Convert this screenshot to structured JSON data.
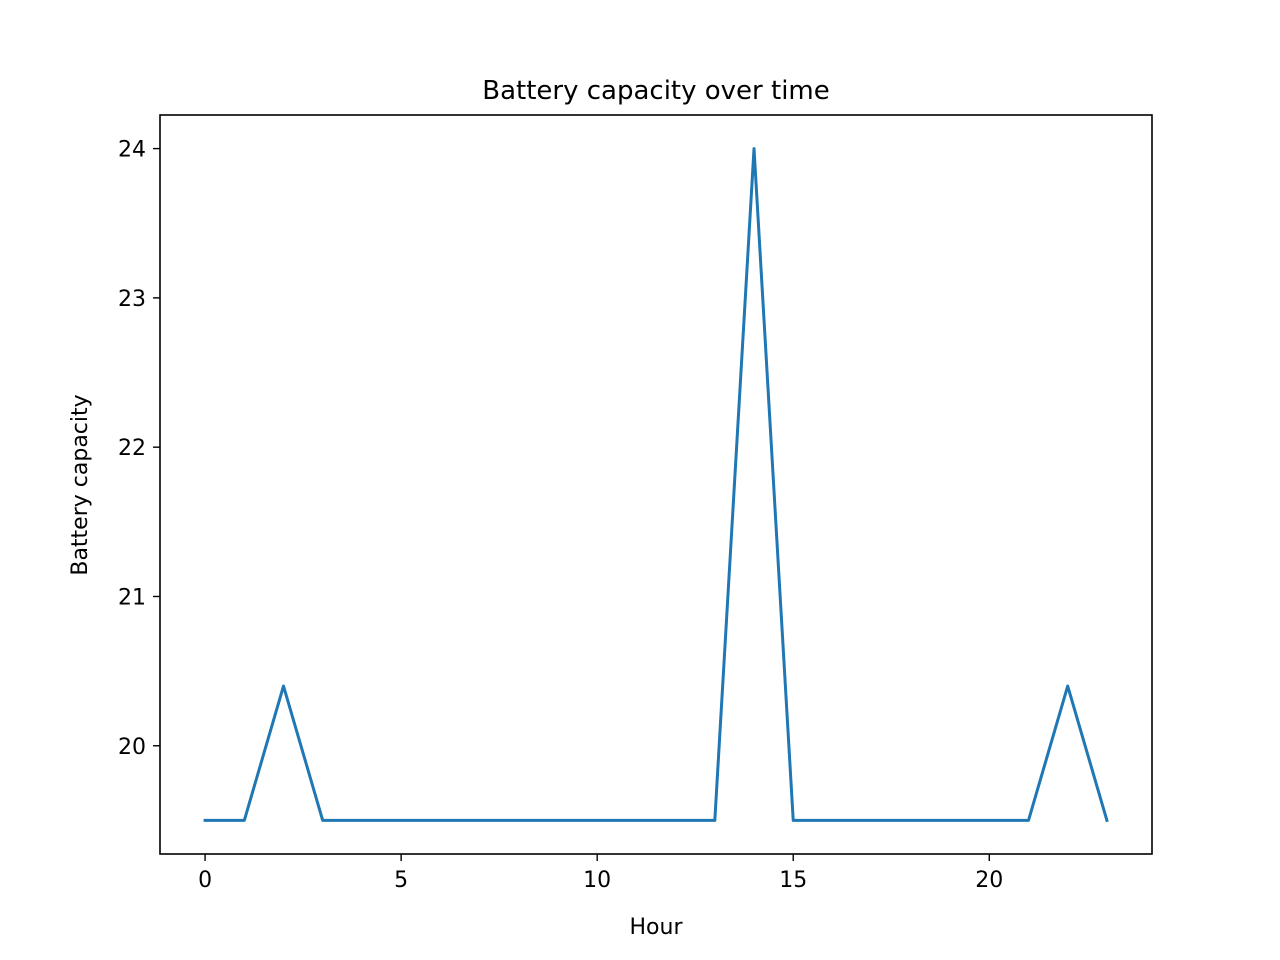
{
  "chart_data": {
    "type": "line",
    "title": "Battery capacity over time",
    "xlabel": "Hour",
    "ylabel": "Battery capacity",
    "xlim": [
      -1.15,
      24.15
    ],
    "ylim": [
      19.275,
      24.225
    ],
    "xticks": [
      0,
      5,
      10,
      15,
      20
    ],
    "yticks": [
      20,
      21,
      22,
      23,
      24
    ],
    "grid": false,
    "series": [
      {
        "color": "#1f77b4",
        "x": [
          0,
          1,
          2,
          3,
          4,
          5,
          6,
          7,
          8,
          9,
          10,
          11,
          12,
          13,
          14,
          15,
          16,
          17,
          18,
          19,
          20,
          21,
          22,
          23
        ],
        "y": [
          19.5,
          19.5,
          20.4,
          19.5,
          19.5,
          19.5,
          19.5,
          19.5,
          19.5,
          19.5,
          19.5,
          19.5,
          19.5,
          19.5,
          24.0,
          19.5,
          19.5,
          19.5,
          19.5,
          19.5,
          19.5,
          19.5,
          20.4,
          19.5
        ]
      }
    ]
  }
}
